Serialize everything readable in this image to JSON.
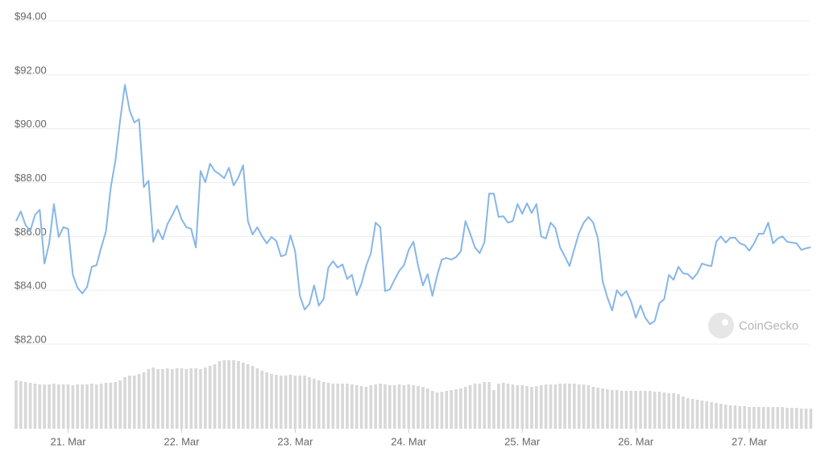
{
  "chart_data": {
    "type": "line",
    "watermark": "CoinGecko",
    "color": "#86b6e8",
    "volume_color": "#d8d8d8",
    "grid": true,
    "xlim": [
      -3.4,
      171
    ],
    "xticks": [
      {
        "value": 11,
        "label": "21. Mar"
      },
      {
        "value": 35,
        "label": "22. Mar"
      },
      {
        "value": 59,
        "label": "23. Mar"
      },
      {
        "value": 83,
        "label": "24. Mar"
      },
      {
        "value": 107,
        "label": "25. Mar"
      },
      {
        "value": 131,
        "label": "26. Mar"
      },
      {
        "value": 155,
        "label": "27. Mar"
      }
    ],
    "ylim": [
      82,
      94
    ],
    "yticks": [
      {
        "value": 82,
        "label": "$82.00"
      },
      {
        "value": 84,
        "label": "$84.00"
      },
      {
        "value": 86,
        "label": "$86.00"
      },
      {
        "value": 88,
        "label": "$88.00"
      },
      {
        "value": 90,
        "label": "$90.00"
      },
      {
        "value": 92,
        "label": "$92.00"
      },
      {
        "value": 94,
        "label": "$94.00"
      }
    ],
    "values": [
      86.57,
      86.93,
      86.42,
      86.2,
      86.8,
      86.99,
      84.99,
      85.74,
      87.2,
      85.98,
      86.34,
      86.28,
      84.57,
      84.09,
      83.88,
      84.12,
      84.87,
      84.93,
      85.59,
      86.19,
      87.8,
      88.82,
      90.32,
      91.63,
      90.68,
      90.23,
      90.35,
      87.83,
      88.07,
      85.8,
      86.25,
      85.89,
      86.46,
      86.78,
      87.14,
      86.63,
      86.34,
      86.28,
      85.59,
      88.43,
      88.01,
      88.7,
      88.43,
      88.31,
      88.16,
      88.55,
      87.89,
      88.19,
      88.64,
      86.57,
      86.07,
      86.34,
      86.0,
      85.74,
      85.98,
      85.83,
      85.26,
      85.32,
      86.04,
      85.44,
      83.79,
      83.28,
      83.49,
      84.18,
      83.43,
      83.67,
      84.84,
      85.08,
      84.84,
      84.96,
      84.42,
      84.57,
      83.82,
      84.24,
      84.9,
      85.38,
      86.51,
      86.34,
      83.97,
      84.03,
      84.39,
      84.72,
      84.93,
      85.5,
      85.8,
      84.9,
      84.18,
      84.6,
      83.79,
      84.54,
      85.14,
      85.2,
      85.14,
      85.23,
      85.44,
      86.57,
      86.1,
      85.59,
      85.38,
      85.77,
      87.59,
      87.59,
      86.72,
      86.75,
      86.51,
      86.57,
      87.2,
      86.84,
      87.23,
      86.87,
      87.2,
      86.0,
      85.92,
      86.51,
      86.31,
      85.59,
      85.26,
      84.9,
      85.53,
      86.13,
      86.51,
      86.72,
      86.51,
      85.92,
      84.33,
      83.73,
      83.25,
      84.0,
      83.79,
      83.97,
      83.58,
      82.98,
      83.43,
      82.98,
      82.74,
      82.86,
      83.52,
      83.67,
      84.57,
      84.39,
      84.87,
      84.63,
      84.6,
      84.42,
      84.63,
      84.99,
      84.93,
      84.9,
      85.8,
      86.0,
      85.77,
      85.95,
      85.95,
      85.74,
      85.68,
      85.47,
      85.74,
      86.1,
      86.1,
      86.51,
      85.74,
      85.92,
      86.0,
      85.8,
      85.77,
      85.74,
      85.5,
      85.56,
      85.59
    ],
    "volumes": [
      60,
      59,
      58,
      57,
      56,
      55,
      55,
      55,
      56,
      55,
      55,
      55,
      54,
      55,
      55,
      55,
      56,
      55,
      56,
      57,
      57,
      58,
      60,
      64,
      66,
      66,
      68,
      70,
      74,
      76,
      74,
      74,
      75,
      74,
      75,
      75,
      74,
      75,
      75,
      74,
      76,
      78,
      80,
      84,
      85,
      85,
      85,
      84,
      82,
      80,
      78,
      75,
      72,
      70,
      68,
      67,
      66,
      66,
      67,
      66,
      66,
      66,
      64,
      62,
      60,
      58,
      57,
      56,
      56,
      56,
      56,
      55,
      54,
      53,
      52,
      54,
      55,
      56,
      55,
      54,
      54,
      55,
      54,
      55,
      54,
      53,
      52,
      50,
      47,
      45,
      46,
      47,
      48,
      49,
      50,
      52,
      54,
      56,
      56,
      58,
      58,
      48,
      56,
      57,
      56,
      55,
      54,
      54,
      53,
      52,
      53,
      54,
      55,
      55,
      55,
      56,
      56,
      56,
      56,
      55,
      55,
      54,
      52,
      51,
      50,
      49,
      48,
      48,
      47,
      47,
      47,
      47,
      47,
      47,
      47,
      46,
      46,
      45,
      44,
      44,
      43,
      40,
      38,
      37,
      36,
      35,
      34,
      33,
      32,
      31,
      30,
      29,
      29,
      28,
      28,
      27,
      27,
      27,
      27,
      27,
      27,
      27,
      27,
      26,
      26,
      26,
      25,
      25,
      25
    ]
  }
}
